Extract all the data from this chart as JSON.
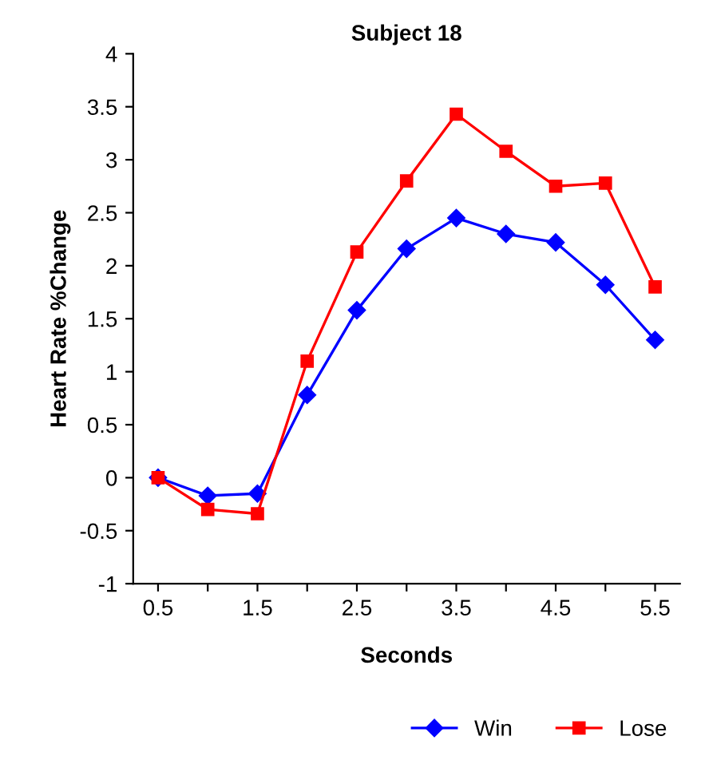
{
  "chart_data": {
    "type": "line",
    "title": "Subject 18",
    "xlabel": "Seconds",
    "ylabel": "Heart Rate %Change",
    "x": [
      0.5,
      1.0,
      1.5,
      2.0,
      2.5,
      3.0,
      3.5,
      4.0,
      4.5,
      5.0,
      5.5
    ],
    "series": [
      {
        "name": "Win",
        "color": "#0000ff",
        "marker": "diamond",
        "values": [
          0,
          -0.17,
          -0.15,
          0.78,
          1.58,
          2.16,
          2.45,
          2.3,
          2.22,
          1.82,
          1.3
        ]
      },
      {
        "name": "Lose",
        "color": "#ff0000",
        "marker": "square",
        "values": [
          0,
          -0.3,
          -0.34,
          1.1,
          2.13,
          2.8,
          3.43,
          3.08,
          2.75,
          2.78,
          1.8
        ]
      }
    ],
    "xlim": [
      0.25,
      5.75
    ],
    "xticks": [
      0.5,
      {
        "value": 1,
        "label": null
      },
      1.5,
      {
        "value": 2,
        "label": null
      },
      2.5,
      {
        "value": 3,
        "label": null
      },
      3.5,
      {
        "value": 4,
        "label": null
      },
      4.5,
      {
        "value": 5,
        "label": null
      },
      5.5
    ],
    "ylim": [
      -1,
      4
    ],
    "yticks": [
      -1,
      -0.5,
      0,
      0.5,
      1,
      1.5,
      2,
      2.5,
      3,
      3.5,
      4
    ],
    "grid": false,
    "legend": "bottom",
    "line_style": "solid"
  }
}
